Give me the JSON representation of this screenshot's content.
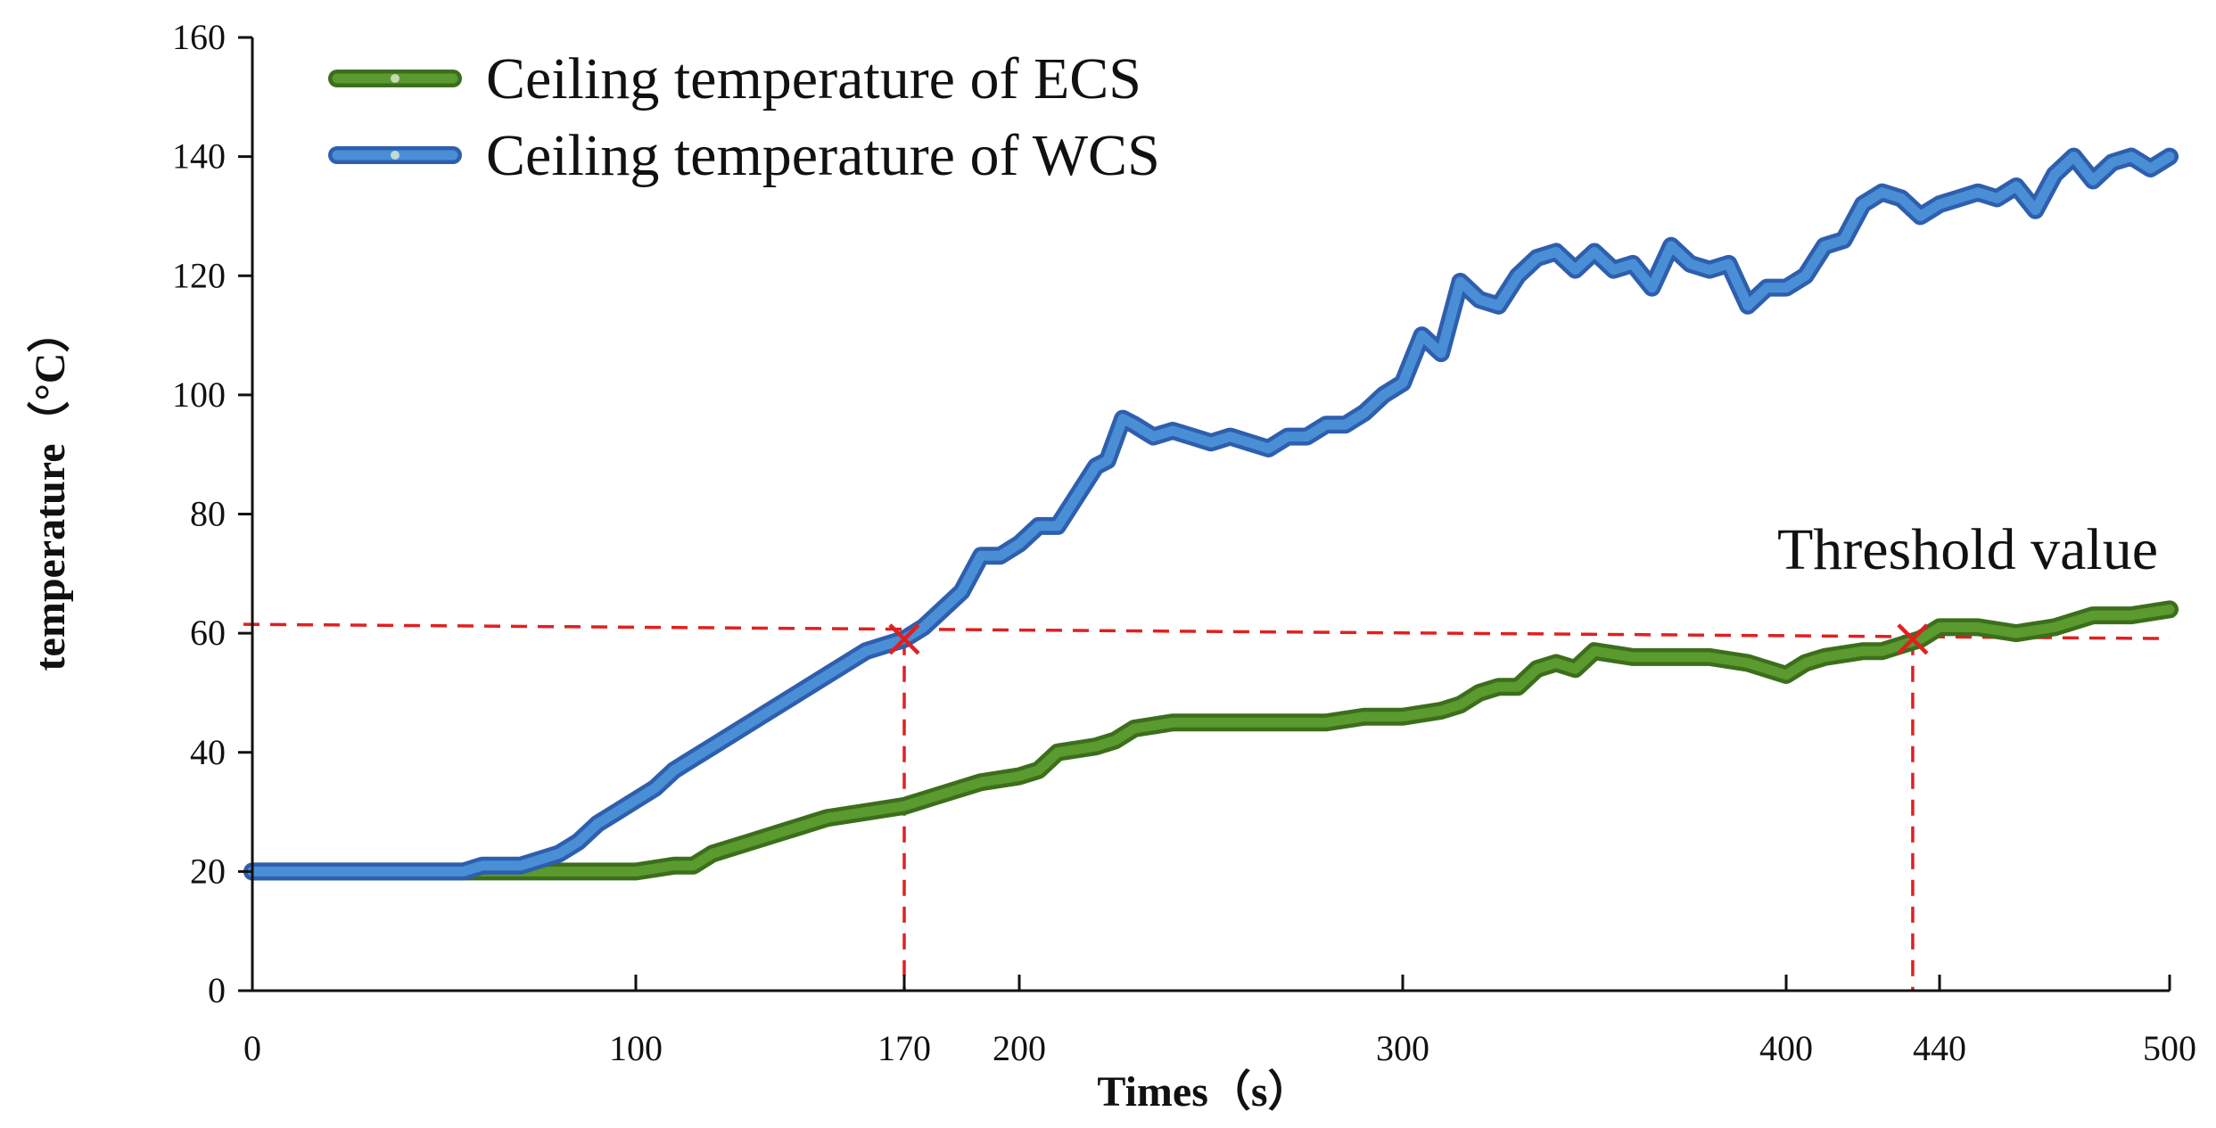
{
  "chart_data": {
    "type": "line",
    "title": "",
    "xlabel": "Times（s）",
    "ylabel": "temperature（°C）",
    "xlim": [
      0,
      500
    ],
    "ylim": [
      0,
      160
    ],
    "x_ticks": [
      0,
      100,
      170,
      200,
      300,
      400,
      440,
      500
    ],
    "y_ticks": [
      0,
      20,
      40,
      60,
      80,
      100,
      120,
      140,
      160
    ],
    "grid": false,
    "legend_position": "top-left",
    "threshold": {
      "label": "Threshold value",
      "value": 60,
      "line_style": "dashed",
      "color": "#e02020"
    },
    "crossings": [
      {
        "series": "Ceiling temperature of WCS",
        "x": 170,
        "y": 59
      },
      {
        "series": "Ceiling temperature of ECS",
        "x": 433,
        "y": 59
      }
    ],
    "series": [
      {
        "name": "Ceiling temperature of ECS",
        "color": "#5a9a2e",
        "border_color": "#3c6e1c",
        "x": [
          0,
          50,
          60,
          80,
          100,
          110,
          115,
          120,
          130,
          140,
          150,
          160,
          170,
          180,
          190,
          200,
          205,
          210,
          220,
          225,
          230,
          240,
          250,
          260,
          270,
          280,
          290,
          300,
          310,
          315,
          320,
          325,
          330,
          335,
          340,
          345,
          350,
          360,
          370,
          380,
          390,
          400,
          405,
          410,
          420,
          425,
          430,
          435,
          440,
          450,
          460,
          470,
          480,
          490,
          500
        ],
        "values": [
          20,
          20,
          20,
          20,
          20,
          21,
          21,
          23,
          25,
          27,
          29,
          30,
          31,
          33,
          35,
          36,
          37,
          40,
          41,
          42,
          44,
          45,
          45,
          45,
          45,
          45,
          46,
          46,
          47,
          48,
          50,
          51,
          51,
          54,
          55,
          54,
          57,
          56,
          56,
          56,
          55,
          53,
          55,
          56,
          57,
          57,
          58,
          59,
          61,
          61,
          60,
          61,
          63,
          63,
          64
        ]
      },
      {
        "name": "Ceiling temperature of WCS",
        "color": "#4a8fd6",
        "border_color": "#2e5fae",
        "x": [
          0,
          50,
          55,
          60,
          70,
          75,
          80,
          85,
          90,
          95,
          100,
          105,
          110,
          115,
          120,
          130,
          140,
          150,
          160,
          170,
          175,
          180,
          185,
          190,
          195,
          200,
          205,
          210,
          215,
          220,
          223,
          227,
          230,
          235,
          240,
          245,
          250,
          255,
          260,
          265,
          270,
          275,
          280,
          285,
          290,
          295,
          300,
          305,
          310,
          315,
          320,
          325,
          330,
          335,
          340,
          345,
          350,
          355,
          360,
          365,
          370,
          375,
          380,
          385,
          390,
          395,
          400,
          405,
          410,
          415,
          420,
          425,
          430,
          435,
          440,
          445,
          450,
          455,
          460,
          465,
          470,
          475,
          480,
          485,
          490,
          495,
          500
        ],
        "values": [
          20,
          20,
          20,
          21,
          21,
          22,
          23,
          25,
          28,
          30,
          32,
          34,
          37,
          39,
          41,
          45,
          49,
          53,
          57,
          59,
          61,
          64,
          67,
          73,
          73,
          75,
          78,
          78,
          83,
          88,
          89,
          96,
          95,
          93,
          94,
          93,
          92,
          93,
          92,
          91,
          93,
          93,
          95,
          95,
          97,
          100,
          102,
          110,
          107,
          119,
          116,
          115,
          120,
          123,
          124,
          121,
          124,
          121,
          122,
          118,
          125,
          122,
          121,
          122,
          115,
          118,
          118,
          120,
          125,
          126,
          132,
          134,
          133,
          130,
          132,
          133,
          134,
          133,
          135,
          131,
          137,
          140,
          136,
          139,
          140,
          138,
          140
        ]
      }
    ]
  }
}
